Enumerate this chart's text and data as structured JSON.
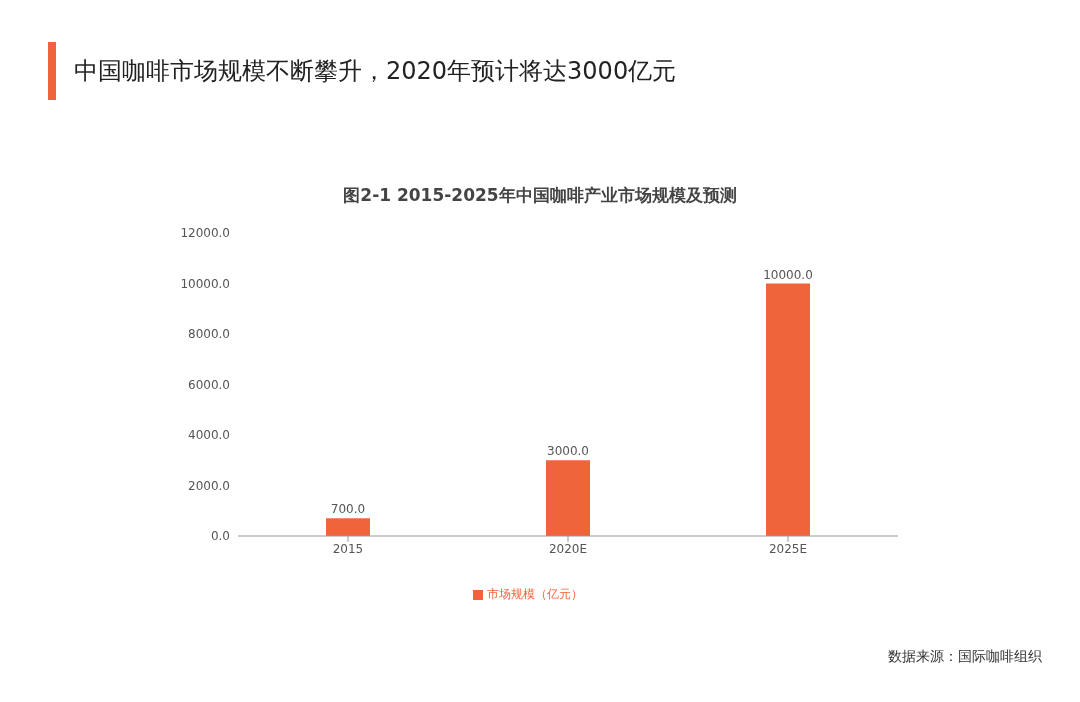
{
  "chart_data": {
    "type": "bar",
    "title": "中国咖啡市场规模不断攀升，2020年预计将达3000亿元",
    "subtitle": "图2-1 2015-2025年中国咖啡产业市场规模及预测",
    "categories": [
      "2015",
      "2020E",
      "2025E"
    ],
    "series": [
      {
        "name": "市场规模（亿元）",
        "color": "#f0643c",
        "values": [
          700,
          3000,
          10000
        ],
        "value_labels": [
          "700.0",
          "3000.0",
          "10000.0"
        ]
      }
    ],
    "ylim": [
      0,
      12000
    ],
    "yticks": [
      {
        "value": 0,
        "label": "0.0"
      },
      {
        "value": 2000,
        "label": "2000.0"
      },
      {
        "value": 4000,
        "label": "4000.0"
      },
      {
        "value": 6000,
        "label": "6000.0"
      },
      {
        "value": 8000,
        "label": "8000.0"
      },
      {
        "value": 10000,
        "label": "10000.0"
      },
      {
        "value": 12000,
        "label": "12000.0"
      }
    ],
    "legend": "bottom",
    "annotations": [
      "数据来源：国际咖啡组织"
    ]
  }
}
